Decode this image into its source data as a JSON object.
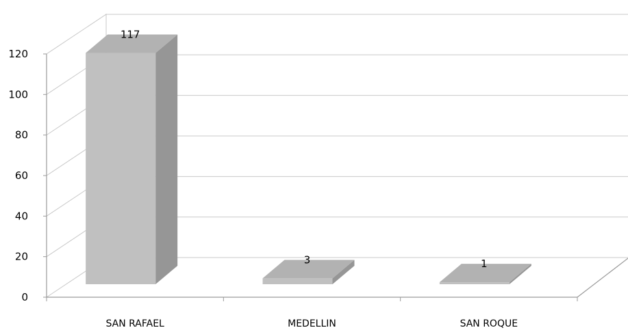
{
  "chart_data": {
    "type": "bar",
    "three_d": true,
    "categories": [
      "SAN RAFAEL",
      "MEDELLIN",
      "SAN ROQUE"
    ],
    "values": [
      117,
      3,
      1
    ],
    "data_labels": [
      "117",
      "3",
      "1"
    ],
    "title": "",
    "xlabel": "",
    "ylabel": "",
    "ylim": [
      0,
      120
    ],
    "yticks": [
      0,
      20,
      40,
      60,
      80,
      100,
      120
    ],
    "ytick_labels": [
      "0",
      "20",
      "40",
      "60",
      "80",
      "100",
      "120"
    ],
    "grid": true,
    "legend": "none",
    "colors": {
      "bar_front": "#c0c0c0",
      "bar_top": "#b2b2b2",
      "bar_side": "#969696",
      "gridline": "#c8c8c8",
      "axis": "#9a9a9a"
    }
  }
}
